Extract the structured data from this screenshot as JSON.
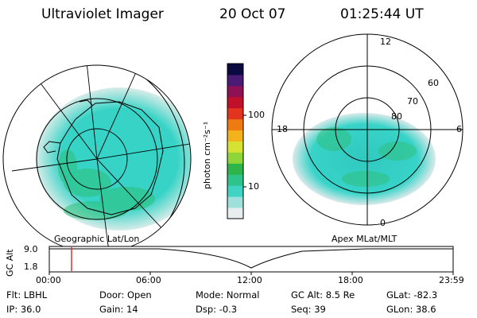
{
  "header": {
    "title": "Ultraviolet Imager",
    "date": "20 Oct 07",
    "time": "01:25:44 UT"
  },
  "left_panel": {
    "caption": "Geographic Lat/Lon",
    "colors": {
      "emission": "#34d4c8",
      "land": "#2e8f3a",
      "grid": "#000000"
    }
  },
  "right_panel": {
    "caption": "Apex MLat/MLT",
    "mlt_labels": {
      "top": "12",
      "bottom": "0",
      "left": "18",
      "right": "6"
    },
    "lat_labels": [
      "60",
      "70",
      "80"
    ]
  },
  "colorbar": {
    "unit_label": "photon cm⁻²s⁻¹",
    "ticks": [
      "100",
      "10"
    ],
    "colors": [
      "#e8eef0",
      "#9de0dc",
      "#3ed3c3",
      "#2fc38c",
      "#2db54a",
      "#8fd53a",
      "#d6e233",
      "#f3b219",
      "#f07a12",
      "#e2341f",
      "#c0102a",
      "#901055",
      "#4a1a74",
      "#0a0a40"
    ]
  },
  "timeline": {
    "axis_label": "GC Alt",
    "y_ticks": [
      "9.0",
      "1.8"
    ],
    "x_ticks": [
      "00:00",
      "06:00",
      "12:00",
      "18:00",
      "23:59"
    ],
    "marker_color": "#e03030"
  },
  "info": [
    [
      {
        "label": "Flt:",
        "value": "LBHL"
      },
      {
        "label": "Door:",
        "value": "Open"
      },
      {
        "label": "Mode:",
        "value": "Normal"
      },
      {
        "label": "GC Alt:",
        "value": "8.5 Re"
      },
      {
        "label": "GLat:",
        "value": "-82.3"
      }
    ],
    [
      {
        "label": "IP:",
        "value": "36.0"
      },
      {
        "label": "Gain:",
        "value": "14"
      },
      {
        "label": "Dsp:",
        "value": "-0.3"
      },
      {
        "label": "Seq:",
        "value": "39"
      },
      {
        "label": "GLon:",
        "value": "38.6"
      }
    ]
  ]
}
